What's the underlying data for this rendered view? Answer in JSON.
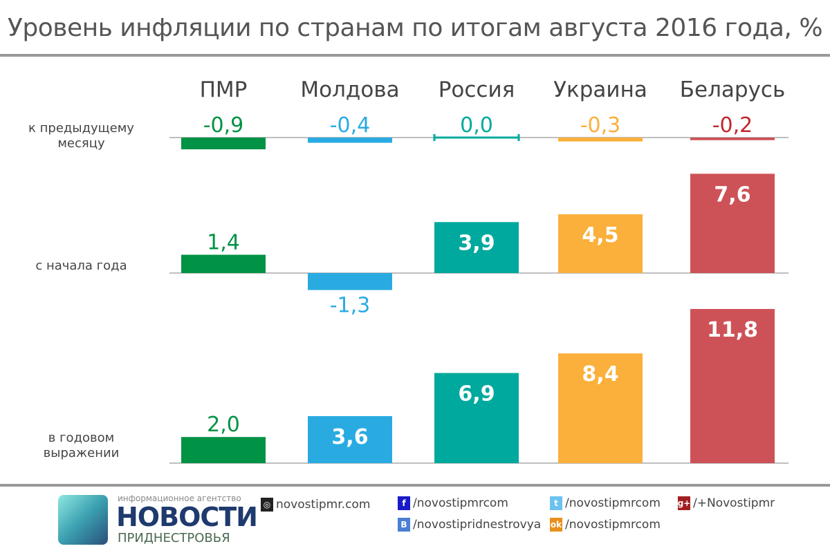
{
  "title": "Уровень инфляции по странам по итогам августа 2016 года, %",
  "chart_data": {
    "type": "bar",
    "title": "Уровень инфляции по странам по итогам августа 2016 года, %",
    "categories": [
      "ПМР",
      "Молдова",
      "Россия",
      "Украина",
      "Беларусь"
    ],
    "colors": [
      "#009245",
      "#29abe2",
      "#00a99d",
      "#fbb03b",
      "#cd5257"
    ],
    "label_colors": [
      "#009245",
      "#29abe2",
      "#00a99d",
      "#fbb03b",
      "#c1272d"
    ],
    "series": [
      {
        "name": "к предыдущему месяцу",
        "values": [
          -0.9,
          -0.4,
          0.0,
          -0.3,
          -0.2
        ],
        "labels": [
          "-0,9",
          "-0,4",
          "0,0",
          "-0,3",
          "-0,2"
        ]
      },
      {
        "name": "с начала года",
        "values": [
          1.4,
          -1.3,
          3.9,
          4.5,
          7.6
        ],
        "labels": [
          "1,4",
          "-1,3",
          "3,9",
          "4,5",
          "7,6"
        ]
      },
      {
        "name": "в годовом выражении",
        "values": [
          2.0,
          3.6,
          6.9,
          8.4,
          11.8
        ],
        "labels": [
          "2,0",
          "3,6",
          "6,9",
          "8,4",
          "11,8"
        ]
      }
    ]
  },
  "row_labels": [
    [
      "к предыдущему",
      "месяцу"
    ],
    [
      "с начала года"
    ],
    [
      "в годовом",
      "выражении"
    ]
  ],
  "footer": {
    "agency": "информационное агентство",
    "brand1": "НОВОСТИ",
    "brand2": "ПРИДНЕСТРОВЬЯ",
    "site": "novostipmr.com",
    "fb": "/novostipmrcom",
    "vk": "/novostipridnestrovya",
    "tw": "/novostipmrcom",
    "ok": "/novostipmrcom",
    "gp": "/+Novostipmr"
  }
}
